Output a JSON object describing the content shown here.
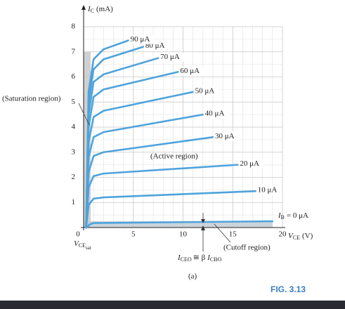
{
  "chart_data": {
    "type": "line",
    "y_label": {
      "symbol": "I",
      "sub": "C",
      "unit": "(mA)"
    },
    "x_label": {
      "symbol": "V",
      "sub": "CE",
      "unit": "(V)"
    },
    "xlim": [
      0,
      20
    ],
    "ylim": [
      0,
      8
    ],
    "xticks": [
      0,
      5,
      10,
      15,
      20
    ],
    "yticks": [
      1,
      2,
      3,
      4,
      5,
      6,
      7,
      8
    ],
    "xminorticks": [
      1,
      2,
      3,
      4,
      6,
      7,
      8,
      9,
      11,
      12,
      13,
      14,
      16,
      17,
      18,
      19
    ],
    "yminorticks": [
      0.5,
      1.5,
      2.5,
      3.5,
      4.5,
      5.5,
      6.5,
      7.5
    ],
    "grid": true,
    "series": [
      {
        "name": "= 0 μA",
        "color": "#4ea3dc",
        "x": [
          0.3,
          0.6,
          1,
          19
        ],
        "values": [
          0,
          0.12,
          0.18,
          0.25
        ]
      },
      {
        "name": "10 μA",
        "color": "#4ea3dc",
        "x": [
          0.25,
          0.5,
          1,
          2,
          17.3
        ],
        "values": [
          0,
          0.9,
          1.15,
          1.2,
          1.45
        ]
      },
      {
        "name": "20 μA",
        "color": "#4ea3dc",
        "x": [
          0.25,
          0.5,
          1,
          2,
          15.5
        ],
        "values": [
          0,
          1.6,
          2.05,
          2.15,
          2.5
        ]
      },
      {
        "name": "30 μA",
        "color": "#4ea3dc",
        "x": [
          0.25,
          0.5,
          1,
          2,
          13
        ],
        "values": [
          0,
          2.2,
          2.85,
          3,
          3.6
        ]
      },
      {
        "name": "40 μA",
        "color": "#4ea3dc",
        "x": [
          0.25,
          0.5,
          1,
          2,
          12
        ],
        "values": [
          0,
          2.8,
          3.6,
          3.8,
          4.5
        ]
      },
      {
        "name": "50 μA",
        "color": "#4ea3dc",
        "x": [
          0.25,
          0.5,
          1,
          2,
          11
        ],
        "values": [
          0,
          3.4,
          4.4,
          4.65,
          5.4
        ]
      },
      {
        "name": "60 μA",
        "color": "#4ea3dc",
        "x": [
          0.25,
          0.5,
          1,
          2,
          9.5
        ],
        "values": [
          0,
          4,
          5.2,
          5.5,
          6.2
        ]
      },
      {
        "name": "70 μA",
        "color": "#4ea3dc",
        "x": [
          0.25,
          0.5,
          1,
          2,
          7.5
        ],
        "values": [
          0,
          4.5,
          5.8,
          6.1,
          6.75
        ]
      },
      {
        "name": "80 μA",
        "color": "#4ea3dc",
        "x": [
          0.25,
          0.5,
          1,
          2,
          6
        ],
        "values": [
          0,
          5,
          6.3,
          6.7,
          7.2
        ]
      },
      {
        "name": "90 μA",
        "color": "#4ea3dc",
        "x": [
          0.25,
          0.5,
          1,
          2,
          4.5
        ],
        "values": [
          0,
          5.4,
          6.7,
          7.1,
          7.45
        ]
      }
    ],
    "ib_symbol": {
      "symbol": "I",
      "sub": "B"
    },
    "annotations": {
      "saturation": "(Saturation region)",
      "active": "(Active region)",
      "cutoff": "(Cutoff region)",
      "vcesat": {
        "symbol": "V",
        "sub": "CE",
        "subsub": "sat"
      },
      "iceo": {
        "i1": "I",
        "s1": "CEO",
        "rel": "≅ β",
        "i2": "I",
        "s2": "CBO"
      },
      "panel": "(a)",
      "figure": "FIG. 3.13"
    }
  }
}
